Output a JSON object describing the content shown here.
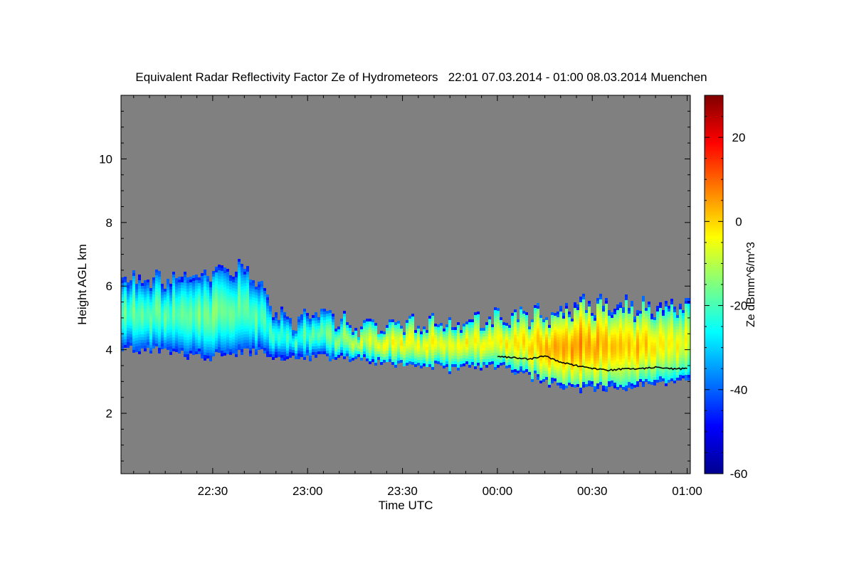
{
  "chart_data": {
    "type": "heatmap",
    "title": "Equivalent Radar Reflectivity Factor Ze of Hydrometeors   22:01 07.03.2014 - 01:00 08.03.2014 Muenchen",
    "xlabel": "Time UTC",
    "ylabel": "Height AGL km",
    "colorbar_label": "Ze dBmm^6/m^3",
    "x_range_minutes_since_midnight": [
      -119,
      61
    ],
    "x_ticks": [
      {
        "label": "22:30",
        "value": -90
      },
      {
        "label": "23:00",
        "value": -60
      },
      {
        "label": "23:30",
        "value": -30
      },
      {
        "label": "00:00",
        "value": 0
      },
      {
        "label": "00:30",
        "value": 30
      },
      {
        "label": "01:00",
        "value": 60
      }
    ],
    "ylim": [
      0.1,
      12.0
    ],
    "y_ticks": [
      2,
      4,
      6,
      8,
      10
    ],
    "clim": [
      -60,
      30
    ],
    "colorbar_ticks": [
      20,
      0,
      -20,
      -40,
      -60
    ],
    "colormap": "jet",
    "background_color": "#808080",
    "echo_layer": {
      "x": [
        -119,
        -110,
        -100,
        -90,
        -80,
        -70,
        -65,
        -60,
        -55,
        -50,
        -45,
        -40,
        -35,
        -30,
        -25,
        -20,
        -15,
        -10,
        -5,
        0,
        5,
        10,
        15,
        20,
        25,
        30,
        35,
        40,
        45,
        50,
        55,
        60
      ],
      "base_km": [
        4.1,
        4.0,
        3.9,
        3.8,
        4.0,
        3.8,
        3.7,
        3.8,
        3.8,
        3.8,
        3.7,
        3.7,
        3.6,
        3.6,
        3.5,
        3.5,
        3.4,
        3.5,
        3.5,
        3.5,
        3.4,
        3.2,
        3.0,
        2.9,
        2.8,
        2.8,
        2.8,
        2.8,
        2.9,
        2.9,
        3.0,
        3.0
      ],
      "top_km": [
        6.3,
        6.1,
        6.3,
        6.4,
        6.6,
        5.1,
        4.8,
        5.0,
        5.2,
        5.0,
        4.7,
        4.7,
        4.8,
        4.8,
        4.8,
        4.8,
        4.8,
        4.8,
        4.9,
        5.0,
        5.0,
        5.1,
        5.1,
        5.3,
        5.4,
        5.4,
        5.4,
        5.4,
        5.4,
        5.4,
        5.4,
        5.4
      ],
      "core_ze_dbz": [
        -20,
        -18,
        -18,
        -16,
        -18,
        -22,
        -24,
        -20,
        -18,
        -14,
        -10,
        -8,
        -6,
        -4,
        -6,
        -4,
        -6,
        -4,
        -4,
        -4,
        -2,
        0,
        2,
        4,
        4,
        4,
        2,
        2,
        0,
        -2,
        -4,
        -6
      ]
    },
    "black_line": {
      "x": [
        0,
        5,
        10,
        15,
        20,
        25,
        30,
        35,
        40,
        45,
        50,
        55,
        60
      ],
      "height_km": [
        3.8,
        3.75,
        3.7,
        3.8,
        3.6,
        3.5,
        3.4,
        3.35,
        3.4,
        3.4,
        3.45,
        3.4,
        3.4
      ]
    }
  }
}
